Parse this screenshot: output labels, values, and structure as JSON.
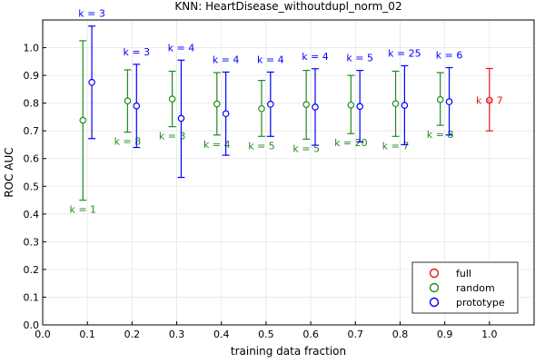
{
  "chart_data": {
    "type": "scatter",
    "title": "KNN: HeartDisease_withoutdupl_norm_02",
    "xlabel": "training data fraction",
    "ylabel": "ROC AUC",
    "xlim": [
      0.0,
      1.1
    ],
    "ylim": [
      0.0,
      1.1
    ],
    "xticks": [
      "0.0",
      "0.1",
      "0.2",
      "0.3",
      "0.4",
      "0.5",
      "0.6",
      "0.7",
      "0.8",
      "0.9",
      "1.0"
    ],
    "yticks": [
      "0.0",
      "0.1",
      "0.2",
      "0.3",
      "0.4",
      "0.5",
      "0.6",
      "0.7",
      "0.8",
      "0.9",
      "1.0"
    ],
    "grid": true,
    "legend_position": "bottom-right",
    "series": [
      {
        "name": "full",
        "color": "#e31a1c",
        "points": [
          {
            "x": 1.0,
            "y": 0.81,
            "lo": 0.7,
            "hi": 0.925,
            "label": "k = 7",
            "label_side": "center"
          }
        ]
      },
      {
        "name": "random",
        "color": "#1f8b1f",
        "points": [
          {
            "x": 0.09,
            "y": 0.738,
            "lo": 0.45,
            "hi": 1.025,
            "label": "k = 1",
            "label_side": "below"
          },
          {
            "x": 0.19,
            "y": 0.808,
            "lo": 0.695,
            "hi": 0.92,
            "label": "k = 8",
            "label_side": "below"
          },
          {
            "x": 0.29,
            "y": 0.815,
            "lo": 0.715,
            "hi": 0.915,
            "label": "k = 3",
            "label_side": "below"
          },
          {
            "x": 0.39,
            "y": 0.797,
            "lo": 0.685,
            "hi": 0.91,
            "label": "k = 4",
            "label_side": "below"
          },
          {
            "x": 0.49,
            "y": 0.78,
            "lo": 0.68,
            "hi": 0.882,
            "label": "k = 5",
            "label_side": "below"
          },
          {
            "x": 0.59,
            "y": 0.795,
            "lo": 0.67,
            "hi": 0.918,
            "label": "k = 5",
            "label_side": "below"
          },
          {
            "x": 0.69,
            "y": 0.793,
            "lo": 0.69,
            "hi": 0.9,
            "label": "k = 20",
            "label_side": "below"
          },
          {
            "x": 0.79,
            "y": 0.798,
            "lo": 0.68,
            "hi": 0.915,
            "label": "k = 7",
            "label_side": "below"
          },
          {
            "x": 0.89,
            "y": 0.813,
            "lo": 0.72,
            "hi": 0.91,
            "label": "k = 8",
            "label_side": "below"
          }
        ]
      },
      {
        "name": "prototype",
        "color": "#0000ff",
        "points": [
          {
            "x": 0.11,
            "y": 0.875,
            "lo": 0.672,
            "hi": 1.078,
            "label": "k = 3",
            "label_side": "above"
          },
          {
            "x": 0.21,
            "y": 0.79,
            "lo": 0.64,
            "hi": 0.94,
            "label": "k = 3",
            "label_side": "above"
          },
          {
            "x": 0.31,
            "y": 0.745,
            "lo": 0.532,
            "hi": 0.955,
            "label": "k = 4",
            "label_side": "above"
          },
          {
            "x": 0.41,
            "y": 0.762,
            "lo": 0.612,
            "hi": 0.912,
            "label": "k = 4",
            "label_side": "above"
          },
          {
            "x": 0.51,
            "y": 0.796,
            "lo": 0.68,
            "hi": 0.912,
            "label": "k = 4",
            "label_side": "above"
          },
          {
            "x": 0.61,
            "y": 0.786,
            "lo": 0.648,
            "hi": 0.924,
            "label": "k = 4",
            "label_side": "above"
          },
          {
            "x": 0.71,
            "y": 0.788,
            "lo": 0.66,
            "hi": 0.918,
            "label": "k = 5",
            "label_side": "above"
          },
          {
            "x": 0.81,
            "y": 0.792,
            "lo": 0.65,
            "hi": 0.935,
            "label": "k = 25",
            "label_side": "above"
          },
          {
            "x": 0.91,
            "y": 0.805,
            "lo": 0.685,
            "hi": 0.928,
            "label": "k = 6",
            "label_side": "above"
          }
        ]
      }
    ]
  }
}
